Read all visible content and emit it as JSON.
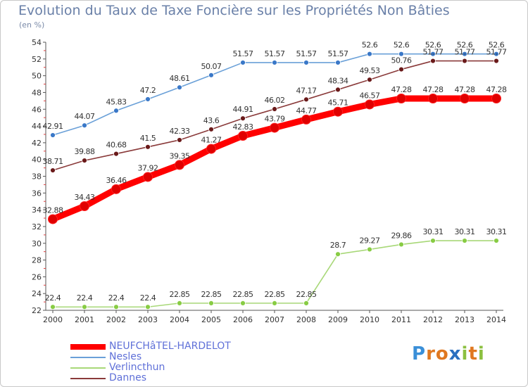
{
  "title": "Evolution du Taux de Taxe Foncière sur les Propriétés Non Bâties",
  "unit": "(en %)",
  "logo": {
    "letters": [
      "P",
      "r",
      "o",
      "x",
      "i",
      "t",
      "i"
    ],
    "colors": [
      "#3a8fd8",
      "#e07820",
      "#e07820",
      "#2a6fc0",
      "#8cc040",
      "#e07820",
      "#8cc040"
    ]
  },
  "chart_data": {
    "type": "line",
    "title": "Evolution du Taux de Taxe Foncière sur les Propriétés Non Bâties",
    "ylabel": "(en %)",
    "xlabel": "",
    "x": [
      "2000",
      "2001",
      "2002",
      "2003",
      "2004",
      "2005",
      "2006",
      "2007",
      "2008",
      "2009",
      "2010",
      "2011",
      "2012",
      "2013",
      "2014"
    ],
    "yticks": [
      "22",
      "24",
      "26",
      "28",
      "30",
      "32",
      "34",
      "36",
      "38",
      "40",
      "42",
      "44",
      "46",
      "48",
      "50",
      "52",
      "54"
    ],
    "ylim": [
      22,
      54
    ],
    "grid": false,
    "legend_position": "bottom-left",
    "series": [
      {
        "name": "NEUFCHâTEL-HARDELOT",
        "color": "#ff0000",
        "marker": "#e00000",
        "weight": "bold",
        "values": [
          32.88,
          34.43,
          36.46,
          37.92,
          39.35,
          41.27,
          42.83,
          43.79,
          44.77,
          45.71,
          46.57,
          47.28,
          47.28,
          47.28,
          47.28
        ],
        "labels": [
          "32.88",
          "34.43",
          "36.46",
          "37.92",
          "39.35",
          "41.27",
          "42.83",
          "43.79",
          "44.77",
          "45.71",
          "46.57",
          "47.28",
          "47.28",
          "47.28",
          "47.28"
        ]
      },
      {
        "name": "Nesles",
        "color": "#6aa0d8",
        "marker": "#3a78c8",
        "weight": "thin",
        "values": [
          42.91,
          44.07,
          45.83,
          47.2,
          48.61,
          50.07,
          51.57,
          51.57,
          51.57,
          51.57,
          52.6,
          52.6,
          52.6,
          52.6,
          52.6
        ],
        "labels": [
          "42.91",
          "44.07",
          "45.83",
          "47.2",
          "48.61",
          "50.07",
          "51.57",
          "51.57",
          "51.57",
          "51.57",
          "52.6",
          "52.6",
          "52.6",
          "52.6",
          "52.6"
        ]
      },
      {
        "name": "Verlincthun",
        "color": "#a8d878",
        "marker": "#88cc44",
        "weight": "thin",
        "values": [
          22.4,
          22.4,
          22.4,
          22.4,
          22.85,
          22.85,
          22.85,
          22.85,
          22.85,
          28.7,
          29.27,
          29.86,
          30.31,
          30.31,
          30.31
        ],
        "labels": [
          "22.4",
          "22.4",
          "22.4",
          "22.4",
          "22.85",
          "22.85",
          "22.85",
          "22.85",
          "22.85",
          "28.7",
          "29.27",
          "29.86",
          "30.31",
          "30.31",
          "30.31"
        ]
      },
      {
        "name": "Dannes",
        "color": "#8a3a3a",
        "marker": "#6a1a1a",
        "weight": "thin",
        "values": [
          38.71,
          39.88,
          40.68,
          41.5,
          42.33,
          43.6,
          44.91,
          46.02,
          47.17,
          48.34,
          49.53,
          50.76,
          51.77,
          51.77,
          51.77
        ],
        "labels": [
          "38.71",
          "39.88",
          "40.68",
          "41.5",
          "42.33",
          "43.6",
          "44.91",
          "46.02",
          "47.17",
          "48.34",
          "49.53",
          "50.76",
          "51.77",
          "51.77",
          "51.77"
        ]
      }
    ]
  }
}
